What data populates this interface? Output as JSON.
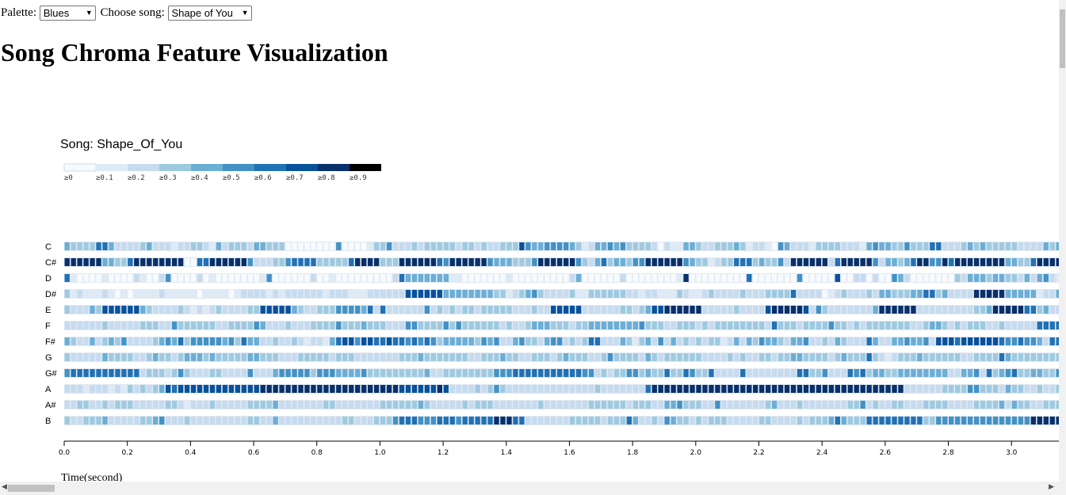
{
  "controls": {
    "palette_label": "Palette:",
    "palette_value": "Blues",
    "song_label": "Choose song:",
    "song_value": "Shape of You"
  },
  "page_title": "Song Chroma Feature Visualization",
  "chart_data": {
    "type": "heatmap",
    "title": "Song: Shape_Of_You",
    "xlabel": "Time(second)",
    "ylabel": "",
    "pitches": [
      "C",
      "C#",
      "D",
      "D#",
      "E",
      "F",
      "F#",
      "G",
      "G#",
      "A",
      "A#",
      "B"
    ],
    "x_step": 0.02,
    "xlim": [
      0,
      3.15
    ],
    "x_ticks": [
      0.0,
      0.2,
      0.4,
      0.6,
      0.8,
      1.0,
      1.2,
      1.4,
      1.6,
      1.8,
      2.0,
      2.2,
      2.4,
      2.6,
      2.8,
      3.0
    ],
    "x_tick_labels": [
      "0.0",
      "0.2",
      "0.4",
      "0.6",
      "0.8",
      "1.0",
      "1.2",
      "1.4",
      "1.6",
      "1.8",
      "2.0",
      "2.2",
      "2.4",
      "2.6",
      "2.8",
      "3.0"
    ],
    "legend": {
      "thresholds": [
        0,
        0.1,
        0.2,
        0.3,
        0.4,
        0.5,
        0.6,
        0.7,
        0.8,
        0.9
      ],
      "labels": [
        "≥0",
        "≥0.1",
        "≥0.2",
        "≥0.3",
        "≥0.4",
        "≥0.5",
        "≥0.6",
        "≥0.7",
        "≥0.8",
        "≥0.9"
      ],
      "colors": [
        "#f7fbff",
        "#deebf7",
        "#c6dbef",
        "#9ecae1",
        "#6baed6",
        "#4292c6",
        "#2171b5",
        "#08519c",
        "#08306b",
        "#000000"
      ]
    },
    "values": {
      "C": "4333366422223422212233214233324433300000000500001335222323333323323223337544555543124454533332021144322333431221054222133332221454433533366222343433333222243444334455642241134423433",
      "C#": "88888844336888888880066888888522233566663333368888333888888658888885444333588888853246344355888888543312336663433528888882688888524434688558688",
      "D": "6100001000021002500002010000000150000002001000000000264444444110000000100000000024000000200000000180000000006000000050000070022020054200000003244434433242452134034000033002005323333212211132311232024",
      "D#": "3121112101011112111110111101222212122222212221112222227777774444444433123453222231133333322122111321123222232223333622220123222324433344663422228888844444122434442222123222223222233222222",
      "E": "3222437777774322223212123222233777774322333555546262222225232323323333322232277777222222332347788888822222322227888887253222222248888882222222223348888866342223222224433435327788888887777222722",
      "F": "2222223222223332253333332233335422232223333533343332225533335353333332322344433323344444444533322333232333333332633323333533232333333322344323233322322222666666543254345333343323332343333333",
      "F#": "4322423435222234546355555453644223223212214677577667665656534444435452245332455232366222431342524232323312424354432445223243222642244544527776777777655655426643456235435236512444",
      "G": "3222224333322343323444343333344333222333332333222222233343333333223334332233323433322353333243233333322223232233233443333234333632123334333333223333643333333344336333333642233434",
      "G#": "5666666666662333235322233222252224555553555444453333333334223333333355566666666666552323355343363365336222262222222266335222656344334444444422445263456334433522233323343",
      "A": "2221222121323234767777777777777888888888888888888888877777787222232353222222222222223222222268888888888888888888888888888888888888888222222333355333243322322322322222238762222",
      "A#": "2233223233322222332122232222233334222222233222222233333343222223233322222223222222233333323332244533322522222223422232222222335232233222333322223333424332233333232234233",
      "B": "3223334222223345222322222222233224222222222233222333566655566656666688866222222233333233364223254332323332222233222232333464333666666666335555555555555558888822655333364232366"
    }
  }
}
